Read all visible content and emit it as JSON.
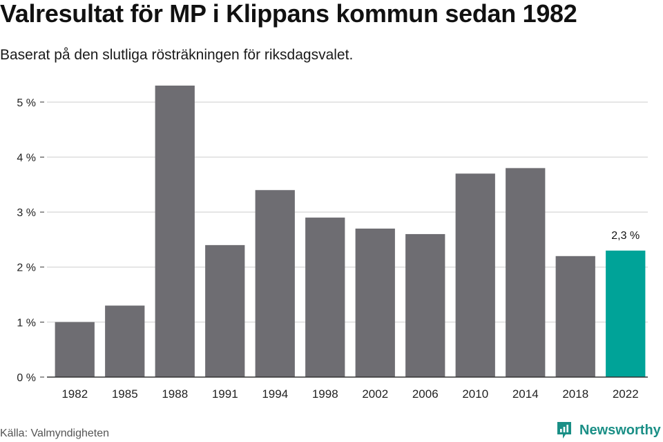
{
  "header": {
    "title": "Valresultat för MP i Klippans kommun sedan 1982",
    "subtitle": "Baserat på den slutliga rösträkningen för riksdagsvalet."
  },
  "footer": {
    "source": "Källa: Valmyndigheten",
    "brand": "Newsworthy",
    "brand_icon": "newsworthy-logo-icon"
  },
  "colors": {
    "bar": "#6e6d72",
    "highlight": "#00a398",
    "brand": "#1a8f86",
    "grid": "#dddddd",
    "axis": "#333333"
  },
  "chart_data": {
    "type": "bar",
    "categories": [
      "1982",
      "1985",
      "1988",
      "1991",
      "1994",
      "1998",
      "2002",
      "2006",
      "2010",
      "2014",
      "2018",
      "2022"
    ],
    "values": [
      1.0,
      1.3,
      5.3,
      2.4,
      3.4,
      2.9,
      2.7,
      2.6,
      3.7,
      3.8,
      2.2,
      2.3
    ],
    "unit": "%",
    "ylim": [
      0,
      5.5
    ],
    "yticks": [
      0,
      1,
      2,
      3,
      4,
      5
    ],
    "ytick_labels": [
      "0 %",
      "1 %",
      "2 %",
      "3 %",
      "4 %",
      "5 %"
    ],
    "grid": true,
    "highlight_index": 11,
    "annotations": [
      {
        "category": "2022",
        "label": "2,3 %"
      }
    ],
    "title": "Valresultat för MP i Klippans kommun sedan 1982",
    "xlabel": "",
    "ylabel": ""
  }
}
